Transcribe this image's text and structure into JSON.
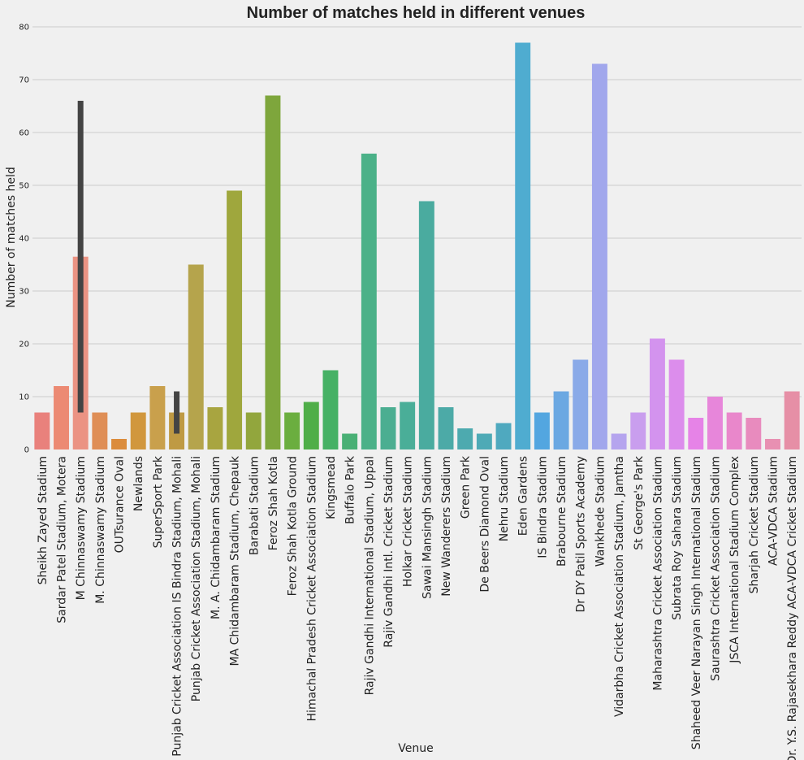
{
  "chart_data": {
    "type": "bar",
    "title": "Number of matches held in different venues",
    "xlabel": "Venue",
    "ylabel": "Number of matches held",
    "ylim": [
      0,
      80
    ],
    "yticks": [
      "0",
      "10",
      "20",
      "30",
      "40",
      "50",
      "60",
      "70",
      "80"
    ],
    "grid": "horizontal",
    "legend": "none",
    "categories": [
      "Sheikh Zayed Stadium",
      "Sardar Patel Stadium, Motera",
      "M Chinnaswamy Stadium",
      "M. Chinnaswamy Stadium",
      "OUTsurance Oval",
      "Newlands",
      "SuperSport Park",
      "Punjab Cricket Association IS Bindra Stadium, Mohali",
      "Punjab Cricket Association Stadium, Mohali",
      "M. A. Chidambaram Stadium",
      "MA Chidambaram Stadium, Chepauk",
      "Barabati Stadium",
      "Feroz Shah Kotla",
      "Feroz Shah Kotla Ground",
      "Himachal Pradesh Cricket Association Stadium",
      "Kingsmead",
      "Buffalo Park",
      "Rajiv Gandhi International Stadium, Uppal",
      "Rajiv Gandhi Intl. Cricket Stadium",
      "Holkar Cricket Stadium",
      "Sawai Mansingh Stadium",
      "New Wanderers Stadium",
      "Green Park",
      "De Beers Diamond Oval",
      "Nehru Stadium",
      "Eden Gardens",
      "IS Bindra Stadium",
      "Brabourne Stadium",
      "Dr DY Patil Sports Academy",
      "Wankhede Stadium",
      "Vidarbha Cricket Association Stadium, Jamtha",
      "St George's Park",
      "Maharashtra Cricket Association Stadium",
      "Subrata Roy Sahara Stadium",
      "Shaheed Veer Narayan Singh International Stadium",
      "Saurashtra Cricket Association Stadium",
      "JSCA International Stadium Complex",
      "Sharjah Cricket Stadium",
      "ACA-VDCA Stadium",
      "Dr. Y.S. Rajasekhara Reddy ACA-VDCA Cricket Stadium"
    ],
    "values": [
      7,
      12,
      36.5,
      7,
      2,
      7,
      12,
      7,
      35,
      8,
      49,
      7,
      67,
      7,
      9,
      15,
      3,
      56,
      8,
      9,
      47,
      8,
      4,
      3,
      5,
      77,
      7,
      11,
      17,
      73,
      3,
      7,
      21,
      17,
      6,
      10,
      7,
      6,
      2,
      11
    ],
    "error_bars": [
      {
        "category": "M Chinnaswamy Stadium",
        "low": 7,
        "high": 66
      },
      {
        "category": "Punjab Cricket Association IS Bindra Stadium, Mohali",
        "low": 3,
        "high": 11
      }
    ],
    "colors": [
      "#e9817c",
      "#ec8a73",
      "#eb9383",
      "#df8e56",
      "#db8c3c",
      "#d1973d",
      "#c9a04c",
      "#bf9a43",
      "#b5a44c",
      "#a8a540",
      "#9fa73d",
      "#92a63d",
      "#7ea63c",
      "#6bae3f",
      "#4fae48",
      "#46b165",
      "#49b075",
      "#4bb188",
      "#4bae91",
      "#4aae98",
      "#4aab9f",
      "#4caaa7",
      "#4daaaf",
      "#4eaab6",
      "#4fa9bf",
      "#4facd0",
      "#53a6e0",
      "#6ba8e2",
      "#8aaae8",
      "#a1a7ec",
      "#b5a4ee",
      "#c99eee",
      "#d393ee",
      "#dc8dec",
      "#e683e7",
      "#e786da",
      "#e987cb",
      "#e88bbe",
      "#e890b2",
      "#e68fa6"
    ],
    "error_bar_color": "#444444"
  }
}
